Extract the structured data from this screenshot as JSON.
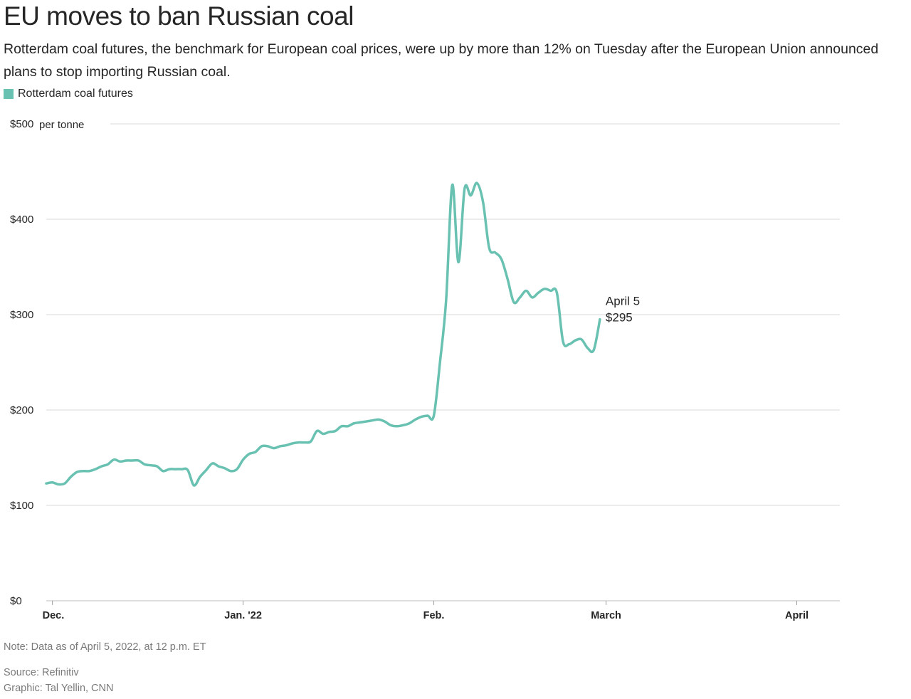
{
  "header": {
    "title": "EU moves to ban Russian coal",
    "subtitle": "Rotterdam coal futures, the benchmark for European coal prices, were up by more than 12% on Tuesday after the European Union announced plans to stop importing Russian coal."
  },
  "legend": {
    "label": "Rotterdam coal futures",
    "color": "#69c1b2"
  },
  "chart_data": {
    "type": "line",
    "title": "EU moves to ban Russian coal",
    "series_name": "Rotterdam coal futures",
    "ylabel": "per tonne",
    "ylim": [
      0,
      500
    ],
    "y_ticks": [
      {
        "value": 500,
        "label": "$500",
        "suffix": "per tonne"
      },
      {
        "value": 400,
        "label": "$400"
      },
      {
        "value": 300,
        "label": "$300"
      },
      {
        "value": 200,
        "label": "$200"
      },
      {
        "value": 100,
        "label": "$100"
      },
      {
        "value": 0,
        "label": "$0"
      }
    ],
    "x_unit": "days since Dec. 1, 2021",
    "xlim": [
      -1,
      128
    ],
    "x_ticks": [
      {
        "value": 0,
        "label": "Dec."
      },
      {
        "value": 31,
        "label": "Jan. '22"
      },
      {
        "value": 62,
        "label": "Feb."
      },
      {
        "value": 90,
        "label": "March"
      },
      {
        "value": 121,
        "label": "April"
      }
    ],
    "points": [
      [
        -1,
        123
      ],
      [
        0,
        124
      ],
      [
        1,
        122
      ],
      [
        2,
        123
      ],
      [
        3,
        130
      ],
      [
        4,
        135
      ],
      [
        5,
        136
      ],
      [
        6,
        136
      ],
      [
        7,
        138
      ],
      [
        8,
        141
      ],
      [
        9,
        143
      ],
      [
        10,
        148
      ],
      [
        11,
        146
      ],
      [
        12,
        147
      ],
      [
        13,
        147
      ],
      [
        14,
        147
      ],
      [
        15,
        143
      ],
      [
        16,
        142
      ],
      [
        17,
        141
      ],
      [
        18,
        136
      ],
      [
        19,
        138
      ],
      [
        20,
        138
      ],
      [
        21,
        138
      ],
      [
        22,
        137
      ],
      [
        23,
        121
      ],
      [
        24,
        130
      ],
      [
        25,
        137
      ],
      [
        26,
        144
      ],
      [
        27,
        141
      ],
      [
        28,
        139
      ],
      [
        29,
        136
      ],
      [
        30,
        138
      ],
      [
        31,
        148
      ],
      [
        32,
        154
      ],
      [
        33,
        156
      ],
      [
        34,
        162
      ],
      [
        35,
        162
      ],
      [
        36,
        160
      ],
      [
        37,
        162
      ],
      [
        38,
        163
      ],
      [
        39,
        165
      ],
      [
        40,
        166
      ],
      [
        41,
        166
      ],
      [
        42,
        167
      ],
      [
        43,
        178
      ],
      [
        44,
        175
      ],
      [
        45,
        177
      ],
      [
        46,
        178
      ],
      [
        47,
        183
      ],
      [
        48,
        183
      ],
      [
        49,
        186
      ],
      [
        50,
        187
      ],
      [
        51,
        188
      ],
      [
        52,
        189
      ],
      [
        53,
        190
      ],
      [
        54,
        188
      ],
      [
        55,
        184
      ],
      [
        56,
        183
      ],
      [
        57,
        184
      ],
      [
        58,
        186
      ],
      [
        59,
        190
      ],
      [
        60,
        193
      ],
      [
        61,
        194
      ],
      [
        62,
        194
      ],
      [
        63,
        250
      ],
      [
        64,
        315
      ],
      [
        65,
        436
      ],
      [
        66,
        355
      ],
      [
        67,
        432
      ],
      [
        68,
        425
      ],
      [
        69,
        438
      ],
      [
        70,
        418
      ],
      [
        71,
        370
      ],
      [
        72,
        365
      ],
      [
        73,
        358
      ],
      [
        74,
        337
      ],
      [
        75,
        313
      ],
      [
        76,
        318
      ],
      [
        77,
        325
      ],
      [
        78,
        318
      ],
      [
        79,
        323
      ],
      [
        80,
        327
      ],
      [
        81,
        325
      ],
      [
        82,
        323
      ],
      [
        83,
        272
      ],
      [
        84,
        269
      ],
      [
        85,
        273
      ],
      [
        86,
        274
      ],
      [
        87,
        265
      ],
      [
        88,
        263
      ],
      [
        89,
        295
      ]
    ],
    "annotation": {
      "date": "April 5",
      "value": "$295"
    }
  },
  "footer": {
    "note": "Note: Data as of April 5, 2022, at 12 p.m. ET",
    "source": "Source: Refinitiv",
    "credit": "Graphic: Tal Yellin, CNN"
  }
}
